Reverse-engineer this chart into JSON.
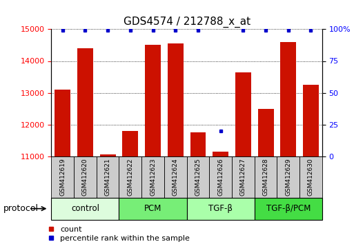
{
  "title": "GDS4574 / 212788_x_at",
  "samples": [
    "GSM412619",
    "GSM412620",
    "GSM412621",
    "GSM412622",
    "GSM412623",
    "GSM412624",
    "GSM412625",
    "GSM412626",
    "GSM412627",
    "GSM412628",
    "GSM412629",
    "GSM412630"
  ],
  "counts": [
    13100,
    14400,
    11050,
    11800,
    14500,
    14550,
    11750,
    11150,
    13650,
    12500,
    14600,
    13250
  ],
  "percentile_ranks": [
    99,
    99,
    99,
    99,
    99,
    99,
    99,
    20,
    99,
    99,
    99,
    99
  ],
  "ylim_left": [
    11000,
    15000
  ],
  "ylim_right": [
    0,
    100
  ],
  "yticks_left": [
    11000,
    12000,
    13000,
    14000,
    15000
  ],
  "yticks_right": [
    0,
    25,
    50,
    75,
    100
  ],
  "groups": [
    {
      "label": "control",
      "start": 0,
      "end": 3,
      "color": "#ddfcdd"
    },
    {
      "label": "PCM",
      "start": 3,
      "end": 6,
      "color": "#77ee77"
    },
    {
      "label": "TGF-β",
      "start": 6,
      "end": 9,
      "color": "#aaffaa"
    },
    {
      "label": "TGF-β/PCM",
      "start": 9,
      "end": 12,
      "color": "#44dd44"
    }
  ],
  "bar_color": "#cc1100",
  "dot_color": "#0000cc",
  "sample_box_color": "#cccccc",
  "background_color": "#ffffff",
  "title_fontsize": 11,
  "legend_label_count": "count",
  "legend_label_percentile": "percentile rank within the sample",
  "protocol_label": "protocol"
}
